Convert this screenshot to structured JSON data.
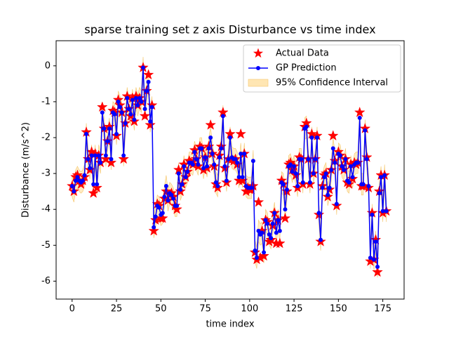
{
  "chart_data": {
    "type": "line",
    "title": "sparse training set z axis Disturbance vs time index",
    "xlabel": "time index",
    "ylabel": "Disturbance (m/s^2)",
    "xlim": [
      -9,
      187
    ],
    "ylim": [
      -6.5,
      0.7
    ],
    "xticks": [
      0,
      25,
      50,
      75,
      100,
      125,
      150,
      175
    ],
    "yticks": [
      -6,
      -5,
      -4,
      -3,
      -2,
      -1,
      0
    ],
    "legend": "upper right",
    "x": [
      0,
      1,
      2,
      3,
      4,
      5,
      6,
      7,
      8,
      9,
      10,
      11,
      12,
      13,
      14,
      15,
      16,
      17,
      18,
      19,
      20,
      21,
      22,
      23,
      24,
      25,
      26,
      27,
      28,
      29,
      30,
      31,
      32,
      33,
      34,
      35,
      36,
      37,
      38,
      39,
      40,
      41,
      42,
      43,
      44,
      45,
      46,
      47,
      48,
      49,
      50,
      51,
      52,
      53,
      54,
      55,
      56,
      57,
      58,
      59,
      60,
      61,
      62,
      63,
      64,
      65,
      66,
      67,
      68,
      69,
      70,
      71,
      72,
      73,
      74,
      75,
      76,
      77,
      78,
      79,
      80,
      81,
      82,
      83,
      84,
      85,
      86,
      87,
      88,
      89,
      90,
      91,
      92,
      93,
      94,
      95,
      96,
      97,
      98,
      99,
      100,
      101,
      102,
      103,
      104,
      105,
      106,
      107,
      108,
      109,
      110,
      111,
      112,
      113,
      114,
      115,
      116,
      117,
      118,
      119,
      120,
      121,
      122,
      123,
      124,
      125,
      126,
      127,
      128,
      129,
      130,
      131,
      132,
      133,
      134,
      135,
      136,
      137,
      138,
      139,
      140,
      141,
      142,
      143,
      144,
      145,
      146,
      147,
      148,
      149,
      150,
      151,
      152,
      153,
      154,
      155,
      156,
      157,
      158,
      159,
      160,
      161,
      162,
      163,
      164,
      165,
      166,
      167,
      168,
      169,
      170,
      171,
      172,
      173,
      174,
      175,
      176,
      177
    ],
    "series": [
      {
        "name": "Actual Data",
        "color": "#ff0000",
        "marker": "star",
        "values": [
          -3.35,
          -3.5,
          -3.1,
          -3.05,
          -3.2,
          -3.3,
          -3.2,
          -3.1,
          -1.85,
          -2.6,
          -2.9,
          -2.4,
          -3.55,
          -2.45,
          -3.4,
          -2.5,
          -2.7,
          -1.15,
          -1.75,
          -2.6,
          -2.1,
          -1.7,
          -2.7,
          -1.25,
          -1.3,
          -1.95,
          -0.95,
          -1.1,
          -1.3,
          -2.6,
          -1.6,
          -0.85,
          -1.2,
          -1.4,
          -0.9,
          -1.55,
          -0.85,
          -1.1,
          -0.9,
          -1.0,
          -0.05,
          -1.4,
          -0.7,
          -0.25,
          -1.65,
          -1.1,
          -4.6,
          -4.3,
          -3.85,
          -3.9,
          -4.25,
          -4.25,
          -3.7,
          -3.5,
          -3.75,
          -3.6,
          -3.55,
          -3.65,
          -3.9,
          -4.0,
          -2.9,
          -3.5,
          -3.3,
          -2.75,
          -3.1,
          -2.95,
          -2.65,
          -2.7,
          -2.75,
          -2.35,
          -2.6,
          -2.8,
          -2.25,
          -2.3,
          -2.9,
          -2.55,
          -2.85,
          -2.25,
          -1.65,
          -2.45,
          -2.8,
          -3.3,
          -3.4,
          -2.5,
          -2.25,
          -1.3,
          -2.85,
          -3.25,
          -2.6,
          -1.9,
          -2.6,
          -2.65,
          -2.6,
          -2.75,
          -3.2,
          -1.9,
          -3.2,
          -2.45,
          -3.5,
          -3.4,
          -3.45,
          -3.45,
          -3.35,
          -5.2,
          -5.4,
          -3.8,
          -5.35,
          -4.6,
          -5.3,
          -4.3,
          -4.35,
          -4.9,
          -4.85,
          -4.45,
          -4.1,
          -4.95,
          -4.3,
          -4.95,
          -3.2,
          -3.3,
          -4.25,
          -3.5,
          -2.75,
          -2.7,
          -2.9,
          -2.8,
          -3.05,
          -3.4,
          -2.55,
          -2.6,
          -3.3,
          -1.7,
          -1.6,
          -2.6,
          -3.3,
          -1.9,
          -3.0,
          -2.6,
          -1.95,
          -4.15,
          -4.9,
          -3.35,
          -3.05,
          -3.0,
          -3.65,
          -3.45,
          -2.9,
          -1.95,
          -2.65,
          -3.9,
          -2.4,
          -2.5,
          -2.8,
          -2.9,
          -2.6,
          -3.25,
          -3.3,
          -2.75,
          -3.15,
          -2.7,
          -2.75,
          -2.7,
          -1.3,
          -3.35,
          -3.35,
          -1.75,
          -2.55,
          -3.4,
          -5.45,
          -4.1,
          -5.4,
          -4.85,
          -5.75,
          -3.5,
          -3.05,
          -4.1,
          -3.05,
          -4.05
        ]
      },
      {
        "name": "GP Prediction",
        "color": "#0000ff",
        "marker": "circle",
        "values": [
          -3.35,
          -3.5,
          -3.2,
          -3.1,
          -3.2,
          -3.25,
          -3.2,
          -3.05,
          -1.9,
          -2.6,
          -2.85,
          -2.5,
          -3.3,
          -2.5,
          -3.3,
          -2.5,
          -2.7,
          -1.3,
          -1.75,
          -2.5,
          -2.1,
          -1.75,
          -2.6,
          -1.3,
          -1.35,
          -1.9,
          -1.0,
          -1.15,
          -1.3,
          -2.5,
          -1.6,
          -0.9,
          -1.2,
          -1.35,
          -0.95,
          -1.5,
          -0.9,
          -1.1,
          -0.9,
          -1.0,
          -0.05,
          -1.2,
          -0.7,
          -0.45,
          -1.55,
          -1.15,
          -4.5,
          -4.2,
          -3.9,
          -3.95,
          -4.15,
          -4.1,
          -3.65,
          -3.35,
          -3.75,
          -3.55,
          -3.6,
          -3.7,
          -3.9,
          -3.9,
          -3.0,
          -3.45,
          -3.3,
          -2.8,
          -3.1,
          -2.95,
          -2.7,
          -2.7,
          -2.75,
          -2.4,
          -2.6,
          -2.75,
          -2.3,
          -2.3,
          -2.85,
          -2.55,
          -2.8,
          -2.3,
          -2.0,
          -2.45,
          -2.75,
          -3.25,
          -3.35,
          -2.55,
          -2.3,
          -1.4,
          -2.8,
          -3.2,
          -2.6,
          -2.0,
          -2.55,
          -2.6,
          -2.6,
          -2.7,
          -3.1,
          -2.45,
          -3.1,
          -2.45,
          -3.35,
          -3.4,
          -3.4,
          -3.4,
          -2.65,
          -5.15,
          -5.35,
          -4.6,
          -4.7,
          -4.65,
          -5.2,
          -4.3,
          -4.4,
          -4.7,
          -4.8,
          -4.4,
          -4.1,
          -4.65,
          -4.3,
          -4.6,
          -3.25,
          -3.3,
          -4.0,
          -3.45,
          -2.8,
          -2.75,
          -2.95,
          -2.8,
          -3.0,
          -3.35,
          -2.6,
          -2.6,
          -3.25,
          -1.75,
          -1.7,
          -2.6,
          -3.25,
          -2.0,
          -3.0,
          -2.6,
          -2.0,
          -4.1,
          -4.85,
          -3.4,
          -3.1,
          -3.0,
          -3.6,
          -3.4,
          -2.9,
          -2.3,
          -2.7,
          -3.85,
          -2.45,
          -2.5,
          -2.8,
          -2.9,
          -2.6,
          -3.2,
          -3.25,
          -2.8,
          -3.1,
          -2.75,
          -2.7,
          -2.7,
          -1.45,
          -3.3,
          -3.3,
          -1.8,
          -2.6,
          -3.35,
          -5.35,
          -4.15,
          -5.4,
          -4.9,
          -5.6,
          -3.55,
          -3.1,
          -4.05,
          -3.05,
          -4.05
        ]
      }
    ],
    "band": {
      "name": "95% Confidence Interval",
      "color": "#ffe6b3",
      "edge": "#f5c66b",
      "lower": [
        -3.65,
        -3.8,
        -3.5,
        -3.4,
        -3.5,
        -3.55,
        -3.5,
        -3.35,
        -2.2,
        -2.9,
        -3.15,
        -2.8,
        -3.6,
        -2.8,
        -3.6,
        -2.8,
        -3.0,
        -1.6,
        -2.05,
        -2.8,
        -2.4,
        -2.05,
        -2.9,
        -1.6,
        -1.65,
        -2.2,
        -1.3,
        -1.45,
        -1.6,
        -2.8,
        -1.9,
        -1.2,
        -1.5,
        -1.65,
        -1.25,
        -1.8,
        -1.2,
        -1.4,
        -1.2,
        -1.3,
        -0.35,
        -1.5,
        -1.0,
        -0.75,
        -1.85,
        -1.45,
        -4.8,
        -4.5,
        -4.2,
        -4.25,
        -4.45,
        -4.4,
        -3.95,
        -3.65,
        -4.05,
        -3.85,
        -3.9,
        -4.0,
        -4.2,
        -4.2,
        -3.3,
        -3.75,
        -3.6,
        -3.1,
        -3.4,
        -3.25,
        -3.0,
        -3.0,
        -3.05,
        -2.7,
        -2.9,
        -3.05,
        -2.6,
        -2.6,
        -3.15,
        -2.85,
        -3.1,
        -2.6,
        -2.3,
        -2.75,
        -3.05,
        -3.55,
        -3.65,
        -2.85,
        -2.6,
        -1.7,
        -3.1,
        -3.5,
        -2.9,
        -2.3,
        -2.85,
        -2.9,
        -2.9,
        -3.0,
        -3.4,
        -2.75,
        -3.4,
        -2.75,
        -3.65,
        -3.7,
        -3.7,
        -3.7,
        -2.95,
        -5.45,
        -5.65,
        -4.9,
        -5.0,
        -4.95,
        -5.5,
        -4.6,
        -4.7,
        -5.0,
        -5.1,
        -4.7,
        -4.4,
        -4.95,
        -4.6,
        -4.9,
        -3.55,
        -3.6,
        -4.3,
        -3.75,
        -3.1,
        -3.05,
        -3.25,
        -3.1,
        -3.3,
        -3.65,
        -2.9,
        -2.9,
        -3.55,
        -2.05,
        -2.0,
        -2.9,
        -3.55,
        -2.3,
        -3.3,
        -2.9,
        -2.3,
        -4.4,
        -5.15,
        -3.7,
        -3.4,
        -3.3,
        -3.9,
        -3.7,
        -3.2,
        -2.6,
        -3.0,
        -4.15,
        -2.75,
        -2.8,
        -3.1,
        -3.2,
        -2.9,
        -3.5,
        -3.55,
        -3.1,
        -3.4,
        -3.05,
        -3.0,
        -3.0,
        -1.75,
        -3.6,
        -3.6,
        -2.1,
        -2.9,
        -3.65,
        -5.65,
        -4.45,
        -5.7,
        -5.2,
        -5.9,
        -3.85,
        -3.4,
        -4.35,
        -3.35,
        -4.35
      ],
      "upper": [
        -3.05,
        -3.2,
        -2.9,
        -2.8,
        -2.9,
        -2.95,
        -2.9,
        -2.75,
        -1.6,
        -2.3,
        -2.55,
        -2.2,
        -3.0,
        -2.2,
        -3.0,
        -2.2,
        -2.4,
        -1.0,
        -1.45,
        -2.2,
        -1.8,
        -1.45,
        -2.3,
        -1.0,
        -1.05,
        -1.6,
        -0.7,
        -0.85,
        -1.0,
        -2.2,
        -1.3,
        -0.6,
        -0.9,
        -1.05,
        -0.65,
        -1.2,
        -0.6,
        -0.8,
        -0.6,
        -0.7,
        0.25,
        -0.9,
        -0.4,
        -0.15,
        -1.25,
        -0.85,
        -4.2,
        -3.9,
        -3.6,
        -3.65,
        -3.85,
        -3.8,
        -3.35,
        -3.05,
        -3.45,
        -3.25,
        -3.3,
        -3.4,
        -3.6,
        -3.6,
        -2.7,
        -3.15,
        -3.0,
        -2.5,
        -2.8,
        -2.65,
        -2.4,
        -2.4,
        -2.45,
        -2.1,
        -2.3,
        -2.45,
        -2.0,
        -2.0,
        -2.55,
        -2.25,
        -2.5,
        -2.0,
        -1.7,
        -2.15,
        -2.45,
        -2.95,
        -3.05,
        -2.25,
        -2.0,
        -1.1,
        -2.5,
        -2.9,
        -2.3,
        -1.7,
        -2.25,
        -2.3,
        -2.3,
        -2.4,
        -2.8,
        -2.15,
        -2.8,
        -2.15,
        -3.05,
        -3.1,
        -3.1,
        -3.1,
        -2.35,
        -4.85,
        -5.05,
        -4.3,
        -4.4,
        -4.35,
        -4.9,
        -4.0,
        -4.1,
        -4.4,
        -4.5,
        -4.1,
        -3.8,
        -4.35,
        -4.0,
        -4.3,
        -2.95,
        -3.0,
        -3.7,
        -3.15,
        -2.5,
        -2.45,
        -2.65,
        -2.5,
        -2.7,
        -3.05,
        -2.3,
        -2.3,
        -2.95,
        -1.45,
        -1.4,
        -2.3,
        -2.95,
        -1.7,
        -2.7,
        -2.3,
        -1.7,
        -3.8,
        -4.55,
        -3.1,
        -2.8,
        -2.7,
        -3.3,
        -3.1,
        -2.6,
        -2.0,
        -2.4,
        -3.55,
        -2.15,
        -2.2,
        -2.5,
        -2.6,
        -2.3,
        -2.9,
        -2.95,
        -2.5,
        -2.8,
        -2.45,
        -2.4,
        -2.4,
        -1.15,
        -3.0,
        -3.0,
        -1.5,
        -2.3,
        -3.05,
        -5.05,
        -3.85,
        -5.1,
        -4.6,
        -5.3,
        -3.25,
        -2.8,
        -3.75,
        -2.75,
        -3.75
      ]
    }
  }
}
